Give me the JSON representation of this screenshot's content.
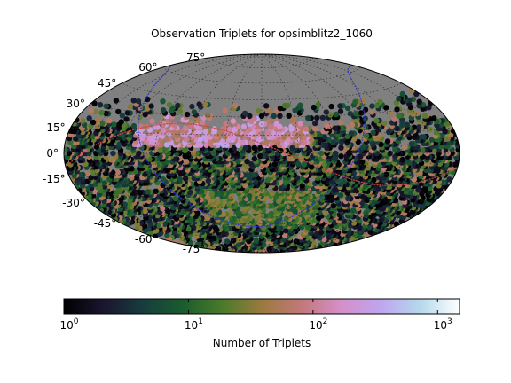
{
  "chart_data": {
    "type": "heatmap",
    "projection": "Hammer-Aitoff (all-sky)",
    "title": "Observation Triplets for opsimblitz2_1060",
    "lat_tick_labels": [
      {
        "lat": 75,
        "label": "75°"
      },
      {
        "lat": 60,
        "label": "60°"
      },
      {
        "lat": 45,
        "label": "45°"
      },
      {
        "lat": 30,
        "label": "30°"
      },
      {
        "lat": 15,
        "label": "15°"
      },
      {
        "lat": 0,
        "label": "0°"
      },
      {
        "lat": -15,
        "label": "-15°"
      },
      {
        "lat": -30,
        "label": "-30°"
      },
      {
        "lat": -45,
        "label": "-45°"
      },
      {
        "lat": -60,
        "label": "-60°"
      },
      {
        "lat": -75,
        "label": "-75°"
      }
    ],
    "grid": true,
    "background_color": "#808080",
    "colorbar": {
      "label": "Number of Triplets",
      "scale": "log",
      "range": [
        1,
        1500
      ],
      "ticks": [
        {
          "value": 1,
          "base": "10",
          "exp": "0"
        },
        {
          "value": 10,
          "base": "10",
          "exp": "1"
        },
        {
          "value": 100,
          "base": "10",
          "exp": "2"
        },
        {
          "value": 1000,
          "base": "10",
          "exp": "3"
        }
      ],
      "colormap": "cubehelix",
      "colors": [
        "#000000",
        "#1a1530",
        "#173d3d",
        "#1a5c2e",
        "#4a7a2a",
        "#9a7a3e",
        "#c2787a",
        "#d58fc9",
        "#bfa5ee",
        "#b5d8ec",
        "#ffffff"
      ]
    },
    "overlays": [
      {
        "name": "ecliptic",
        "color": "#cc4444"
      },
      {
        "name": "galactic plane",
        "color": "#3333cc"
      }
    ]
  }
}
